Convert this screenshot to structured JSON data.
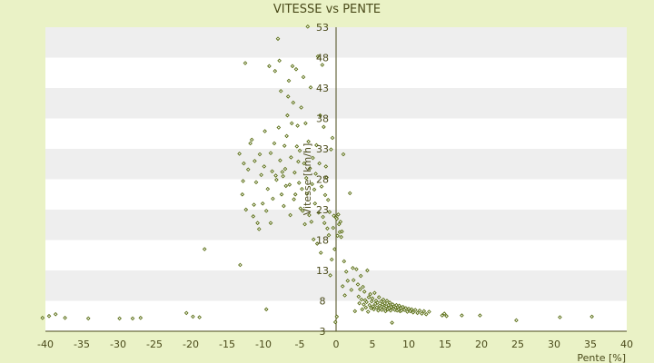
{
  "colors": {
    "page_background": "#eaf2c6",
    "band_light": "#ffffff",
    "band_dark": "#eeeeee",
    "axis": "#4a4a1a",
    "text": "#4a4a1a",
    "marker_stroke": "#5a6e14",
    "marker_fill": "#ffffff"
  },
  "chart_data": {
    "type": "scatter",
    "title": "VITESSE vs PENTE",
    "xlabel": "Pente [%]",
    "ylabel": "Vitesse [km/h]",
    "xlim": [
      -40,
      40
    ],
    "ylim": [
      3,
      53
    ],
    "x_ticks": [
      -40,
      -35,
      -30,
      -25,
      -20,
      -15,
      -10,
      -5,
      0,
      5,
      10,
      15,
      20,
      25,
      30,
      35,
      40
    ],
    "y_ticks": [
      3,
      8,
      13,
      18,
      23,
      28,
      33,
      38,
      43,
      48,
      53
    ],
    "grid": "horizontal alternating bands",
    "legend": "none",
    "marker": "small diamond",
    "points": [
      [
        -40.4,
        5.2
      ],
      [
        -39.5,
        5.5
      ],
      [
        -38.6,
        5.8
      ],
      [
        -37.3,
        5.2
      ],
      [
        -34.1,
        5.1
      ],
      [
        -29.8,
        5.1
      ],
      [
        -28.0,
        5.1
      ],
      [
        -26.9,
        5.2
      ],
      [
        -20.6,
        6.0
      ],
      [
        -19.7,
        5.4
      ],
      [
        -18.8,
        5.3
      ],
      [
        -18.1,
        16.5
      ],
      [
        -13.2,
        13.9
      ],
      [
        -13.3,
        32.2
      ],
      [
        -12.8,
        27.7
      ],
      [
        -12.9,
        25.5
      ],
      [
        -12.7,
        30.6
      ],
      [
        -12.5,
        47.1
      ],
      [
        -12.4,
        23.0
      ],
      [
        -12.1,
        29.6
      ],
      [
        -11.8,
        33.9
      ],
      [
        -11.6,
        34.5
      ],
      [
        -11.4,
        21.9
      ],
      [
        -11.3,
        23.8
      ],
      [
        -11.2,
        31.0
      ],
      [
        -11.0,
        27.5
      ],
      [
        -10.8,
        20.8
      ],
      [
        -10.6,
        19.8
      ],
      [
        -10.5,
        32.1
      ],
      [
        -10.3,
        28.7
      ],
      [
        -10.1,
        24.0
      ],
      [
        -9.9,
        30.1
      ],
      [
        -9.8,
        35.9
      ],
      [
        -9.6,
        22.8
      ],
      [
        -9.6,
        6.6
      ],
      [
        -9.4,
        26.4
      ],
      [
        -9.2,
        46.6
      ],
      [
        -9.0,
        32.3
      ],
      [
        -9.0,
        20.8
      ],
      [
        -8.8,
        29.3
      ],
      [
        -8.7,
        24.8
      ],
      [
        -8.5,
        33.9
      ],
      [
        -8.4,
        45.8
      ],
      [
        -8.3,
        28.6
      ],
      [
        -8.2,
        27.9
      ],
      [
        -8.0,
        51.1
      ],
      [
        -7.9,
        36.5
      ],
      [
        -7.8,
        47.5
      ],
      [
        -7.7,
        31.1
      ],
      [
        -7.6,
        42.5
      ],
      [
        -7.5,
        25.5
      ],
      [
        -7.4,
        29.2
      ],
      [
        -7.3,
        28.5
      ],
      [
        -7.2,
        23.6
      ],
      [
        -7.1,
        33.5
      ],
      [
        -7.0,
        29.7
      ],
      [
        -6.9,
        26.9
      ],
      [
        -6.8,
        35.1
      ],
      [
        -6.7,
        38.5
      ],
      [
        -6.6,
        41.6
      ],
      [
        -6.5,
        44.2
      ],
      [
        -6.4,
        27.1
      ],
      [
        -6.3,
        22.1
      ],
      [
        -6.2,
        31.6
      ],
      [
        -6.1,
        37.2
      ],
      [
        -6.0,
        46.6
      ],
      [
        -5.9,
        40.6
      ],
      [
        -5.8,
        24.7
      ],
      [
        -5.7,
        29.1
      ],
      [
        -5.6,
        25.5
      ],
      [
        -5.5,
        46.1
      ],
      [
        -5.4,
        33.4
      ],
      [
        -5.3,
        36.8
      ],
      [
        -5.2,
        30.9
      ],
      [
        -5.1,
        27.4
      ],
      [
        -5.0,
        32.7
      ],
      [
        -4.9,
        23.2
      ],
      [
        -4.8,
        39.8
      ],
      [
        -4.7,
        26.4
      ],
      [
        -4.6,
        22.8
      ],
      [
        -4.5,
        44.8
      ],
      [
        -4.4,
        30.6
      ],
      [
        -4.3,
        20.6
      ],
      [
        -4.2,
        37.2
      ],
      [
        -4.1,
        28.2
      ],
      [
        -4.0,
        25.6
      ],
      [
        -3.9,
        53.1
      ],
      [
        -3.8,
        34.2
      ],
      [
        -3.7,
        22.1
      ],
      [
        -3.6,
        29.8
      ],
      [
        -3.5,
        43.1
      ],
      [
        -3.4,
        21.0
      ],
      [
        -3.3,
        27.2
      ],
      [
        -3.2,
        31.5
      ],
      [
        -3.1,
        18.1
      ],
      [
        -3.0,
        26.3
      ],
      [
        -2.9,
        24.0
      ],
      [
        -2.8,
        28.9
      ],
      [
        -2.7,
        33.6
      ],
      [
        -2.6,
        17.4
      ],
      [
        -2.5,
        48.2
      ],
      [
        -2.4,
        22.5
      ],
      [
        -2.3,
        30.6
      ],
      [
        -2.2,
        38.5
      ],
      [
        -2.1,
        15.9
      ],
      [
        -2.0,
        26.8
      ],
      [
        -1.9,
        46.8
      ],
      [
        -1.8,
        21.8
      ],
      [
        -1.7,
        36.6
      ],
      [
        -1.6,
        20.8
      ],
      [
        -1.5,
        25.4
      ],
      [
        -1.4,
        30.1
      ],
      [
        -1.3,
        28.3
      ],
      [
        -1.2,
        19.9
      ],
      [
        -1.1,
        24.6
      ],
      [
        -1.0,
        18.8
      ],
      [
        -0.9,
        22.6
      ],
      [
        -0.8,
        12.2
      ],
      [
        -0.7,
        32.9
      ],
      [
        -0.6,
        14.8
      ],
      [
        -0.5,
        34.8
      ],
      [
        -0.4,
        20.0
      ],
      [
        -0.3,
        22.0
      ],
      [
        -0.2,
        16.5
      ],
      [
        -0.1,
        4.5
      ],
      [
        0.0,
        21.7
      ],
      [
        0.1,
        21.5
      ],
      [
        0.1,
        5.4
      ],
      [
        0.2,
        18.7
      ],
      [
        0.3,
        22.2
      ],
      [
        0.4,
        20.6
      ],
      [
        0.5,
        19.3
      ],
      [
        0.6,
        21.0
      ],
      [
        0.7,
        18.5
      ],
      [
        0.8,
        19.4
      ],
      [
        0.9,
        10.4
      ],
      [
        1.0,
        32.1
      ],
      [
        1.1,
        14.5
      ],
      [
        1.2,
        8.9
      ],
      [
        1.4,
        12.8
      ],
      [
        1.6,
        11.3
      ],
      [
        1.9,
        25.7
      ],
      [
        2.1,
        9.8
      ],
      [
        2.3,
        13.4
      ],
      [
        2.4,
        11.4
      ],
      [
        2.6,
        6.3
      ],
      [
        2.8,
        13.2
      ],
      [
        3.0,
        10.7
      ],
      [
        3.1,
        8.7
      ],
      [
        3.2,
        7.6
      ],
      [
        3.3,
        9.9
      ],
      [
        3.4,
        12.1
      ],
      [
        3.5,
        8.2
      ],
      [
        3.6,
        6.6
      ],
      [
        3.7,
        10.3
      ],
      [
        3.8,
        7.4
      ],
      [
        3.9,
        9.5
      ],
      [
        4.0,
        8.1
      ],
      [
        4.1,
        6.9
      ],
      [
        4.2,
        7.8
      ],
      [
        4.3,
        13.0
      ],
      [
        4.4,
        6.2
      ],
      [
        4.5,
        8.6
      ],
      [
        4.6,
        7.3
      ],
      [
        4.7,
        9.1
      ],
      [
        4.8,
        6.8
      ],
      [
        4.9,
        7.9
      ],
      [
        5.0,
        8.4
      ],
      [
        5.1,
        7.1
      ],
      [
        5.2,
        6.6
      ],
      [
        5.3,
        9.3
      ],
      [
        5.4,
        7.5
      ],
      [
        5.5,
        8.0
      ],
      [
        5.6,
        6.9
      ],
      [
        5.7,
        7.7
      ],
      [
        5.8,
        6.4
      ],
      [
        5.9,
        8.6
      ],
      [
        6.0,
        7.2
      ],
      [
        6.1,
        6.8
      ],
      [
        6.2,
        7.9
      ],
      [
        6.3,
        6.5
      ],
      [
        6.4,
        7.4
      ],
      [
        6.5,
        8.2
      ],
      [
        6.6,
        6.9
      ],
      [
        6.7,
        7.6
      ],
      [
        6.8,
        6.3
      ],
      [
        6.9,
        7.1
      ],
      [
        7.0,
        8.0
      ],
      [
        7.1,
        6.6
      ],
      [
        7.2,
        7.3
      ],
      [
        7.3,
        6.8
      ],
      [
        7.4,
        7.7
      ],
      [
        7.5,
        6.4
      ],
      [
        7.6,
        7.0
      ],
      [
        7.7,
        4.4
      ],
      [
        7.8,
        7.4
      ],
      [
        7.9,
        6.7
      ],
      [
        8.0,
        7.1
      ],
      [
        8.1,
        6.5
      ],
      [
        8.2,
        6.9
      ],
      [
        8.3,
        7.3
      ],
      [
        8.4,
        6.4
      ],
      [
        8.5,
        7.0
      ],
      [
        8.6,
        6.6
      ],
      [
        8.7,
        7.2
      ],
      [
        8.8,
        6.3
      ],
      [
        8.9,
        6.8
      ],
      [
        9.0,
        6.4
      ],
      [
        9.2,
        7.0
      ],
      [
        9.4,
        6.5
      ],
      [
        9.6,
        6.8
      ],
      [
        9.8,
        6.2
      ],
      [
        10.0,
        6.7
      ],
      [
        10.2,
        6.3
      ],
      [
        10.4,
        6.6
      ],
      [
        10.6,
        6.1
      ],
      [
        10.9,
        6.5
      ],
      [
        11.2,
        6.0
      ],
      [
        11.5,
        6.4
      ],
      [
        11.8,
        5.9
      ],
      [
        12.1,
        6.3
      ],
      [
        12.4,
        5.8
      ],
      [
        12.8,
        6.2
      ],
      [
        14.6,
        5.6
      ],
      [
        14.9,
        5.9
      ],
      [
        15.2,
        5.5
      ],
      [
        17.3,
        5.6
      ],
      [
        19.8,
        5.6
      ],
      [
        24.8,
        4.8
      ],
      [
        30.8,
        5.3
      ],
      [
        35.2,
        5.4
      ]
    ]
  }
}
